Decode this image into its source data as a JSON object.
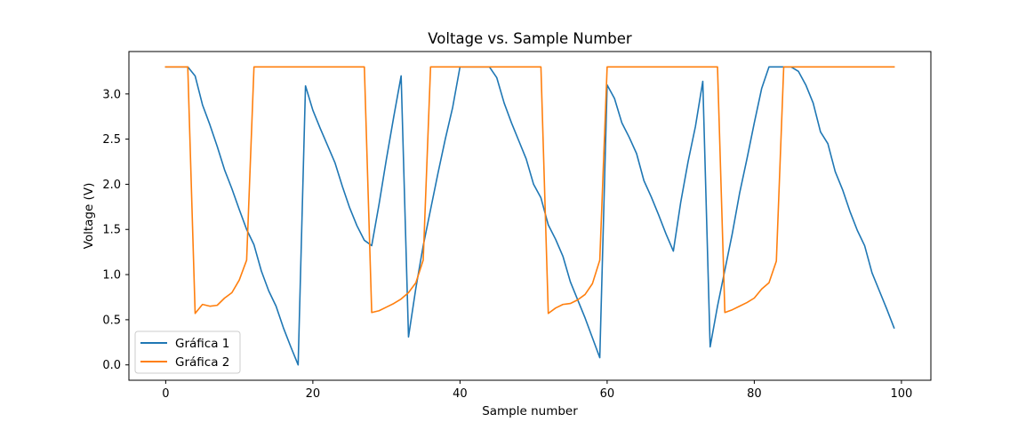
{
  "chart_data": {
    "type": "line",
    "title": "Voltage vs. Sample Number",
    "xlabel": "Sample number",
    "ylabel": "Voltage (V)",
    "xlim": [
      -5,
      104
    ],
    "ylim": [
      -0.17,
      3.47
    ],
    "xticks": [
      0,
      20,
      40,
      60,
      80,
      100
    ],
    "xtick_labels": [
      "0",
      "20",
      "40",
      "60",
      "80",
      "100"
    ],
    "yticks": [
      0.0,
      0.5,
      1.0,
      1.5,
      2.0,
      2.5,
      3.0
    ],
    "ytick_labels": [
      "0.0",
      "0.5",
      "1.0",
      "1.5",
      "2.0",
      "2.5",
      "3.0"
    ],
    "grid": false,
    "legend_position": "lower-left",
    "series": [
      {
        "name": "Gráfica 1",
        "color": "#1f77b4",
        "x": [
          0,
          1,
          2,
          3,
          4,
          5,
          6,
          7,
          8,
          9,
          10,
          11,
          12,
          13,
          14,
          15,
          16,
          17,
          18,
          19,
          20,
          21,
          22,
          23,
          24,
          25,
          26,
          27,
          28,
          29,
          30,
          31,
          32,
          33,
          34,
          35,
          36,
          37,
          38,
          39,
          40,
          41,
          42,
          43,
          44,
          45,
          46,
          47,
          48,
          49,
          50,
          51,
          52,
          53,
          54,
          55,
          56,
          57,
          58,
          59,
          60,
          61,
          62,
          63,
          64,
          65,
          66,
          67,
          68,
          69,
          70,
          71,
          72,
          73,
          74,
          75,
          76,
          77,
          78,
          79,
          80,
          81,
          82,
          83,
          84,
          85,
          86,
          87,
          88,
          89,
          90,
          91,
          92,
          93,
          94,
          95,
          96,
          97,
          98,
          99
        ],
        "values": [
          3.3,
          3.3,
          3.3,
          3.3,
          3.2,
          2.88,
          2.66,
          2.42,
          2.16,
          1.95,
          1.72,
          1.5,
          1.33,
          1.04,
          0.82,
          0.65,
          0.41,
          0.2,
          0.0,
          3.09,
          2.82,
          2.62,
          2.43,
          2.24,
          1.98,
          1.74,
          1.54,
          1.38,
          1.32,
          1.78,
          2.28,
          2.75,
          3.2,
          0.31,
          0.85,
          1.32,
          1.72,
          2.12,
          2.5,
          2.85,
          3.3,
          3.3,
          3.3,
          3.3,
          3.3,
          3.18,
          2.9,
          2.68,
          2.48,
          2.28,
          2.0,
          1.85,
          1.55,
          1.39,
          1.2,
          0.92,
          0.72,
          0.52,
          0.3,
          0.08,
          3.1,
          2.95,
          2.68,
          2.52,
          2.34,
          2.04,
          1.86,
          1.66,
          1.45,
          1.26,
          1.8,
          2.25,
          2.64,
          3.14,
          0.2,
          0.65,
          1.05,
          1.45,
          1.9,
          2.28,
          2.68,
          3.06,
          3.3,
          3.3,
          3.3,
          3.3,
          3.25,
          3.1,
          2.9,
          2.58,
          2.45,
          2.14,
          1.94,
          1.7,
          1.49,
          1.32,
          1.02,
          0.82,
          0.62,
          0.41
        ]
      },
      {
        "name": "Gráfica 2",
        "color": "#ff7f0e",
        "x": [
          0,
          1,
          2,
          3,
          4,
          5,
          6,
          7,
          8,
          9,
          10,
          11,
          12,
          13,
          14,
          15,
          16,
          17,
          18,
          19,
          20,
          21,
          22,
          23,
          24,
          25,
          26,
          27,
          28,
          29,
          30,
          31,
          32,
          33,
          34,
          35,
          36,
          37,
          38,
          39,
          40,
          41,
          42,
          43,
          44,
          45,
          46,
          47,
          48,
          49,
          50,
          51,
          52,
          53,
          54,
          55,
          56,
          57,
          58,
          59,
          60,
          61,
          62,
          63,
          64,
          65,
          66,
          67,
          68,
          69,
          70,
          71,
          72,
          73,
          74,
          75,
          76,
          77,
          78,
          79,
          80,
          81,
          82,
          83,
          84,
          85,
          86,
          87,
          88,
          89,
          90,
          91,
          92,
          93,
          94,
          95,
          96,
          97,
          98,
          99
        ],
        "values": [
          3.3,
          3.3,
          3.3,
          3.3,
          0.57,
          0.67,
          0.65,
          0.66,
          0.74,
          0.8,
          0.94,
          1.16,
          3.3,
          3.3,
          3.3,
          3.3,
          3.3,
          3.3,
          3.3,
          3.3,
          3.3,
          3.3,
          3.3,
          3.3,
          3.3,
          3.3,
          3.3,
          3.3,
          0.58,
          0.6,
          0.64,
          0.68,
          0.73,
          0.8,
          0.91,
          1.16,
          3.3,
          3.3,
          3.3,
          3.3,
          3.3,
          3.3,
          3.3,
          3.3,
          3.3,
          3.3,
          3.3,
          3.3,
          3.3,
          3.3,
          3.3,
          3.3,
          0.57,
          0.63,
          0.67,
          0.68,
          0.72,
          0.78,
          0.9,
          1.16,
          3.3,
          3.3,
          3.3,
          3.3,
          3.3,
          3.3,
          3.3,
          3.3,
          3.3,
          3.3,
          3.3,
          3.3,
          3.3,
          3.3,
          3.3,
          3.3,
          0.58,
          0.61,
          0.65,
          0.69,
          0.74,
          0.84,
          0.91,
          1.15,
          3.3,
          3.3,
          3.3,
          3.3,
          3.3,
          3.3,
          3.3,
          3.3,
          3.3,
          3.3,
          3.3,
          3.3,
          3.3,
          3.3,
          3.3,
          3.3
        ]
      }
    ]
  }
}
